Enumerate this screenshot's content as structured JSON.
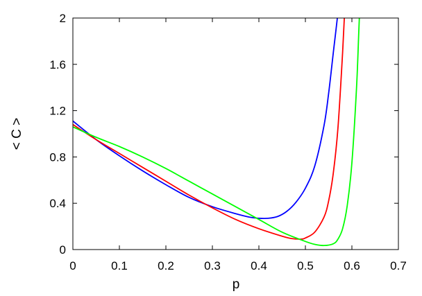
{
  "chart_data": {
    "type": "line",
    "title": "",
    "xlabel": "p",
    "ylabel": "< C >",
    "xlim": [
      0,
      0.7
    ],
    "ylim": [
      0,
      2
    ],
    "xticks": [
      "0",
      "0.1",
      "0.2",
      "0.3",
      "0.4",
      "0.5",
      "0.6",
      "0.7"
    ],
    "yticks": [
      "0",
      "0.4",
      "0.8",
      "1.2",
      "1.6",
      "2"
    ],
    "grid": false,
    "legend": "none",
    "series": [
      {
        "color": "#0000ff",
        "x": [
          0,
          0.05,
          0.1,
          0.15,
          0.2,
          0.25,
          0.3,
          0.35,
          0.38,
          0.4,
          0.42,
          0.44,
          0.46,
          0.48,
          0.5,
          0.52,
          0.54,
          0.55,
          0.56,
          0.57,
          0.575
        ],
        "y": [
          1.11,
          0.95,
          0.81,
          0.68,
          0.56,
          0.45,
          0.37,
          0.31,
          0.28,
          0.27,
          0.27,
          0.285,
          0.33,
          0.41,
          0.53,
          0.72,
          1.07,
          1.35,
          1.7,
          2.05,
          2.3
        ]
      },
      {
        "color": "#ff0000",
        "x": [
          0,
          0.05,
          0.1,
          0.15,
          0.2,
          0.25,
          0.3,
          0.35,
          0.4,
          0.45,
          0.47,
          0.49,
          0.5,
          0.52,
          0.54,
          0.55,
          0.56,
          0.57,
          0.58,
          0.585,
          0.59
        ],
        "y": [
          1.08,
          0.95,
          0.83,
          0.71,
          0.59,
          0.47,
          0.36,
          0.26,
          0.18,
          0.115,
          0.095,
          0.09,
          0.1,
          0.15,
          0.28,
          0.42,
          0.66,
          1.05,
          1.7,
          2.1,
          2.4
        ]
      },
      {
        "color": "#00ff00",
        "x": [
          0,
          0.05,
          0.1,
          0.15,
          0.2,
          0.25,
          0.3,
          0.35,
          0.4,
          0.45,
          0.5,
          0.52,
          0.54,
          0.56,
          0.57,
          0.58,
          0.59,
          0.6,
          0.61,
          0.615,
          0.62
        ],
        "y": [
          1.06,
          0.97,
          0.89,
          0.8,
          0.7,
          0.59,
          0.48,
          0.37,
          0.26,
          0.15,
          0.07,
          0.045,
          0.035,
          0.05,
          0.09,
          0.18,
          0.38,
          0.75,
          1.4,
          1.9,
          2.4
        ]
      }
    ]
  }
}
